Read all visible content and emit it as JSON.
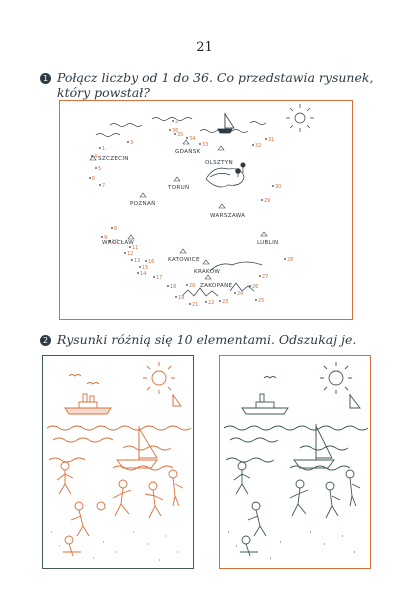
{
  "page_number": "21",
  "task1": {
    "number": "1",
    "line1": "Połącz liczby od 1 do 36. Co przedstawia rysunek,",
    "line2": "który powstał?"
  },
  "task2": {
    "number": "2",
    "text": "Rysunki różnią się 10 elementami. Odszukaj je."
  },
  "cities": [
    "SZCZECIN",
    "GDAŃSK",
    "OLSZTYN",
    "TORUŃ",
    "POZNAŃ",
    "WARSZAWA",
    "WROCŁAW",
    "LUBLIN",
    "KATOWICE",
    "KRAKÓW",
    "ZAKOPANE"
  ],
  "dot_numbers": [
    "1",
    "2",
    "3",
    "4",
    "5",
    "6",
    "7",
    "8",
    "9",
    "10",
    "11",
    "12",
    "13",
    "14",
    "15",
    "16",
    "17",
    "18",
    "19",
    "20",
    "21",
    "22",
    "23",
    "24",
    "25",
    "26",
    "27",
    "28",
    "29",
    "30",
    "31",
    "32",
    "33",
    "34",
    "35",
    "36"
  ],
  "colors": {
    "accent": "#d8703a",
    "ink": "#2d3a44",
    "frame_left": "#d8703a",
    "frame_right": "#3f5a4e"
  }
}
